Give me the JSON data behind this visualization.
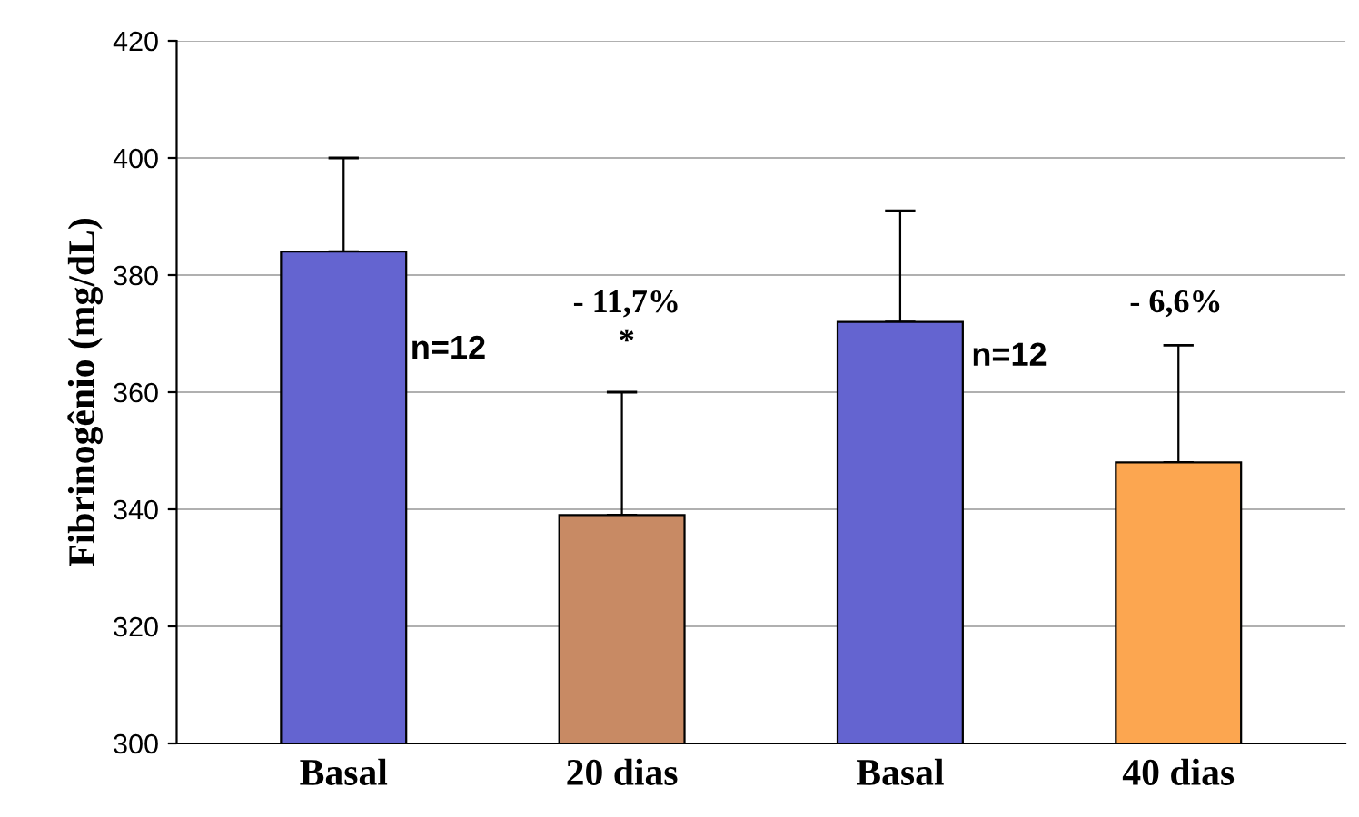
{
  "chart_data": {
    "type": "bar",
    "ylabel": "Fibrinogênio (mg/dL)",
    "categories": [
      "Basal",
      "20 dias",
      "Basal",
      "40 dias"
    ],
    "values": [
      384,
      339,
      372,
      348
    ],
    "errors": [
      [
        384,
        400
      ],
      [
        339,
        360
      ],
      [
        372,
        391
      ],
      [
        348,
        368
      ]
    ],
    "colors": [
      "#6464d0",
      "#c88a64",
      "#6464d0",
      "#fca650"
    ],
    "ylim": [
      300,
      420
    ],
    "yticks": [
      300,
      320,
      340,
      360,
      380,
      400,
      420
    ],
    "grid": "y",
    "annotations": [
      "n=12",
      "- 11,7%",
      "*",
      "n=12",
      "- 6,6%"
    ]
  }
}
